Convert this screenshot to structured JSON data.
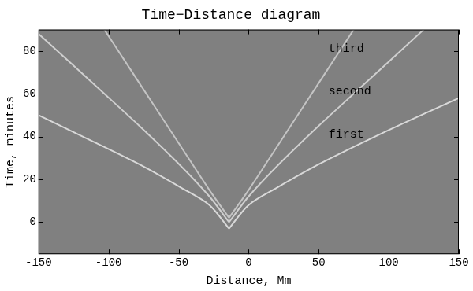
{
  "chart_data": {
    "type": "line",
    "title": "Time−Distance diagram",
    "x_label": "Distance, Mm",
    "y_label": "Time, minutes",
    "xlim": [
      -150,
      150
    ],
    "xticks": [
      -150,
      -100,
      -50,
      0,
      50,
      100,
      150
    ],
    "ylim": [
      -15,
      90
    ],
    "yticks": [
      0,
      20,
      40,
      60,
      80
    ],
    "grid": false,
    "series": [
      {
        "color": "#d8d8d8",
        "x": [
          -14,
          0,
          20,
          50,
          100,
          150
        ],
        "values": [
          -3,
          8,
          16,
          27,
          43,
          58
        ]
      },
      {
        "color": "#d8d8d8",
        "x": [
          -14,
          -28,
          -48,
          -78,
          -128,
          -150
        ],
        "values": [
          -3,
          8,
          16,
          27,
          43,
          50
        ]
      },
      {
        "color": "#cfcfcf",
        "x": [
          -14,
          0,
          20,
          50,
          80,
          100,
          125
        ],
        "values": [
          0,
          12,
          26,
          45,
          63,
          75,
          90
        ]
      },
      {
        "color": "#cfcfcf",
        "x": [
          -14,
          -28,
          -48,
          -78,
          -108,
          -128,
          -150
        ],
        "values": [
          0,
          12,
          26,
          45,
          63,
          75,
          88
        ]
      },
      {
        "color": "#c4c4c4",
        "x": [
          -14,
          0,
          20,
          40,
          60,
          75
        ],
        "values": [
          2,
          15,
          35,
          55,
          75,
          90
        ]
      },
      {
        "color": "#c4c4c4",
        "x": [
          -14,
          -28,
          -48,
          -68,
          -88,
          -103
        ],
        "values": [
          2,
          15,
          35,
          55,
          75,
          90
        ]
      }
    ],
    "annotations": [
      {
        "text": "first",
        "x": 57,
        "y": 41
      },
      {
        "text": "second",
        "x": 57,
        "y": 61
      },
      {
        "text": "third",
        "x": 57,
        "y": 81
      }
    ]
  }
}
